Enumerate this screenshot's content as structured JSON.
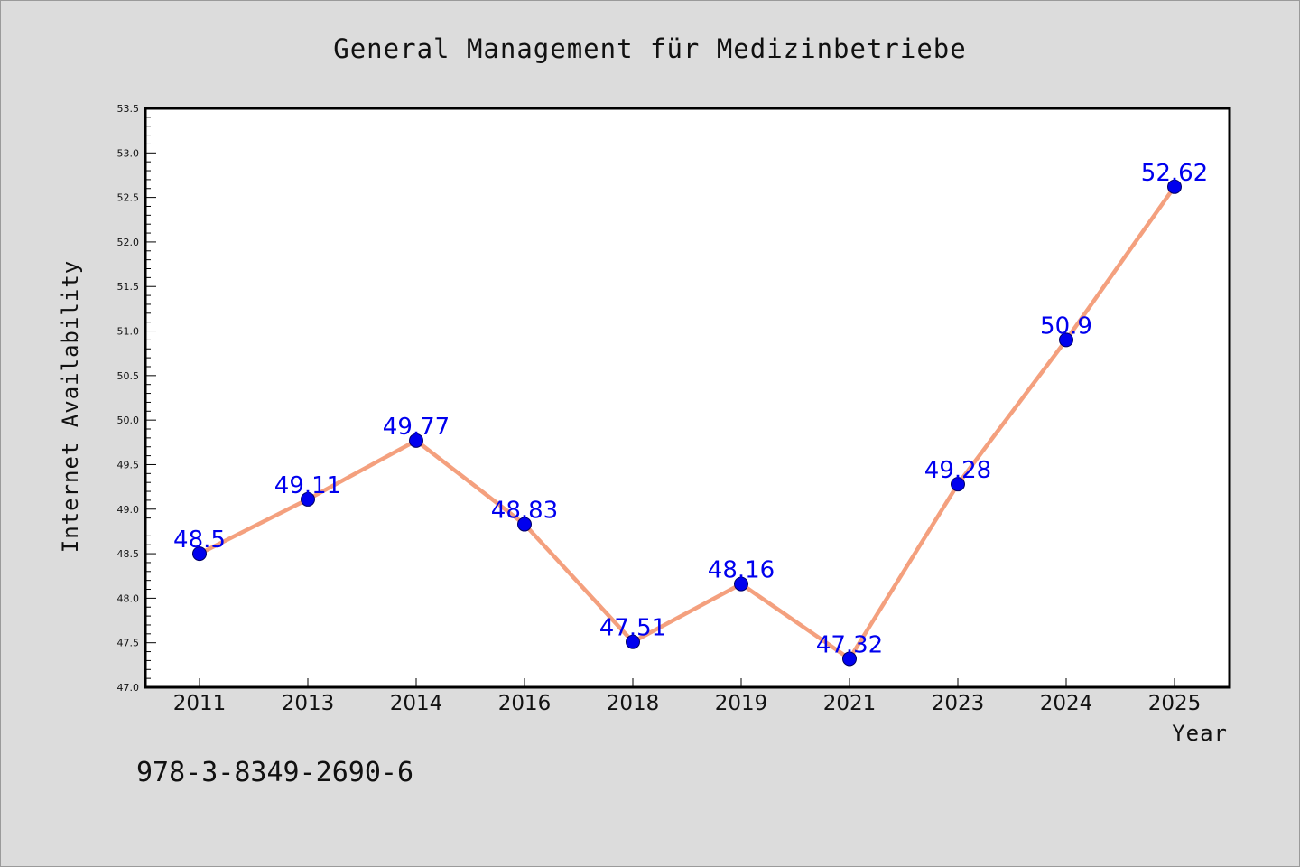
{
  "chart_data": {
    "type": "line",
    "title": "General Management für Medizinbetriebe",
    "xlabel": "Year",
    "ylabel": "Internet Availability",
    "categories": [
      "2011",
      "2013",
      "2014",
      "2016",
      "2018",
      "2019",
      "2021",
      "2023",
      "2024",
      "2025"
    ],
    "series": [
      {
        "values": [
          48.5,
          49.11,
          49.77,
          48.83,
          47.51,
          48.16,
          47.32,
          49.28,
          50.9,
          52.62
        ],
        "data_labels": [
          "48.5",
          "49.11",
          "49.77",
          "48.83",
          "47.51",
          "48.16",
          "47.32",
          "49.28",
          "50.9",
          "52.62"
        ],
        "line_color": "#f4a07e",
        "marker_color": "#0000ee"
      }
    ],
    "ylim": [
      47.0,
      53.5
    ],
    "yticks": [
      "47.0",
      "47.5",
      "48.0",
      "48.5",
      "49.0",
      "49.5",
      "50.0",
      "50.5",
      "51.0",
      "51.5",
      "52.0",
      "52.5",
      "53.0",
      "53.5"
    ],
    "grid": false,
    "legend": "none"
  },
  "footer": {
    "text": "978-3-8349-2690-6"
  },
  "colors": {
    "background": "#dcdcdc",
    "plot_background": "#ffffff",
    "line": "#f4a07e",
    "marker": "#0000ee",
    "data_label": "#0000ee"
  }
}
